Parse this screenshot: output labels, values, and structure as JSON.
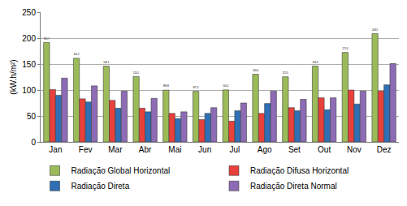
{
  "chart_data": {
    "type": "bar",
    "y_label": "(kW.h/m²)",
    "categories": [
      "Jan",
      "Fev",
      "Mar",
      "Abr",
      "Mai",
      "Jun",
      "Jul",
      "Ago",
      "Set",
      "Out",
      "Nov",
      "Dez"
    ],
    "series": [
      {
        "name": "Radiação Global Horizontal",
        "color": "#9bbb59",
        "values": [
          191.7,
          161.2,
          146.1,
          126.1,
          99.8,
          97.5,
          100.2,
          130.4,
          125.5,
          146.3,
          172.4,
          208.5
        ],
        "value_labels": [
          "191,7",
          "161,2",
          "146,1",
          "126,1",
          "99,8",
          "97,5",
          "100,2",
          "130,4",
          "125,5",
          "146,3",
          "172,4",
          "208,5"
        ],
        "data_labels": true
      },
      {
        "name": "Radiação Difusa Horizontal",
        "color": "#e8403a",
        "values": [
          101,
          83,
          80,
          65,
          55,
          43,
          40,
          55,
          66,
          85,
          100,
          98
        ]
      },
      {
        "name": "Radiação Direta",
        "color": "#2f6fb5",
        "values": [
          90,
          77,
          65,
          58,
          45,
          55,
          60,
          74,
          60,
          62,
          73,
          110
        ]
      },
      {
        "name": "Radiação Direta Normal",
        "color": "#8d6bb5",
        "values": [
          123,
          108,
          98,
          84,
          58,
          66,
          75,
          98,
          82,
          85,
          98,
          151
        ]
      }
    ],
    "ylim": [
      0,
      250
    ],
    "yticks": [
      0,
      50,
      100,
      150,
      200,
      250
    ],
    "grid": true,
    "legend": "bottom"
  }
}
